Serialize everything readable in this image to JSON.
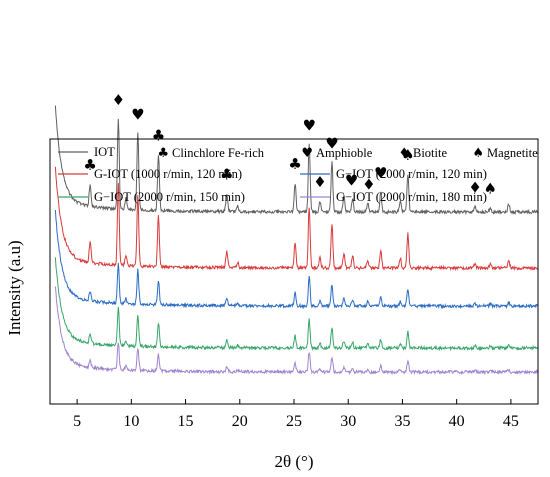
{
  "chart_data": {
    "type": "line",
    "title": "",
    "xlabel": "2θ (°)",
    "ylabel": "Intensity (a.u)",
    "xlim": [
      2.5,
      47.5
    ],
    "xticks": [
      5,
      10,
      15,
      20,
      25,
      30,
      35,
      40,
      45
    ],
    "grid": false,
    "legend_position": "top",
    "phase_legend": [
      {
        "symbol": "♣",
        "label": "Clinchlore Fe-rich"
      },
      {
        "symbol": "♥",
        "label": "Amphioble"
      },
      {
        "symbol": "♦",
        "label": "Biotite"
      },
      {
        "symbol": "♠",
        "label": "Magnetite"
      }
    ],
    "series": [
      {
        "name": "IOT",
        "color": "#606060",
        "offset": 4
      },
      {
        "name": "G-IOT (1000 r/min, 120 min)",
        "color": "#d83a3a",
        "offset": 3
      },
      {
        "name": "G−IOT (2000 r/min, 120 min)",
        "color": "#2b6cc4",
        "offset": 2
      },
      {
        "name": "G−IOT (2000 r/min, 150 min)",
        "color": "#3aa56b",
        "offset": 1
      },
      {
        "name": "G−IOT (2000 r/min, 180 min)",
        "color": "#a084d0",
        "offset": 0
      }
    ],
    "peaks": [
      {
        "x": 6.2,
        "h": 0.25
      },
      {
        "x": 8.8,
        "h": 1.0
      },
      {
        "x": 9.5,
        "h": 0.12
      },
      {
        "x": 10.6,
        "h": 0.85
      },
      {
        "x": 12.5,
        "h": 0.62
      },
      {
        "x": 18.8,
        "h": 0.2
      },
      {
        "x": 19.8,
        "h": 0.06
      },
      {
        "x": 25.1,
        "h": 0.32
      },
      {
        "x": 26.4,
        "h": 0.75
      },
      {
        "x": 27.4,
        "h": 0.12
      },
      {
        "x": 28.5,
        "h": 0.55
      },
      {
        "x": 29.6,
        "h": 0.18
      },
      {
        "x": 30.4,
        "h": 0.15
      },
      {
        "x": 31.8,
        "h": 0.1
      },
      {
        "x": 33.0,
        "h": 0.22
      },
      {
        "x": 34.8,
        "h": 0.12
      },
      {
        "x": 35.5,
        "h": 0.42
      },
      {
        "x": 41.7,
        "h": 0.06
      },
      {
        "x": 43.1,
        "h": 0.05
      },
      {
        "x": 44.8,
        "h": 0.09
      }
    ],
    "peak_markers": [
      {
        "symbol": "♣",
        "x": 6.2
      },
      {
        "symbol": "♦",
        "x": 8.8
      },
      {
        "symbol": "♥",
        "x": 10.6
      },
      {
        "symbol": "♣",
        "x": 12.5
      },
      {
        "symbol": "♣",
        "x": 18.8
      },
      {
        "symbol": "♣",
        "x": 25.1
      },
      {
        "symbol": "♥",
        "x": 26.4
      },
      {
        "symbol": "♦",
        "x": 27.4
      },
      {
        "symbol": "♥",
        "x": 28.5
      },
      {
        "symbol": "♥",
        "x": 30.3
      },
      {
        "symbol": "♦",
        "x": 31.9
      },
      {
        "symbol": "♥",
        "x": 33.0
      },
      {
        "symbol": "♠",
        "x": 35.5
      },
      {
        "symbol": "♦",
        "x": 41.7
      },
      {
        "symbol": "♠",
        "x": 43.1
      }
    ]
  }
}
